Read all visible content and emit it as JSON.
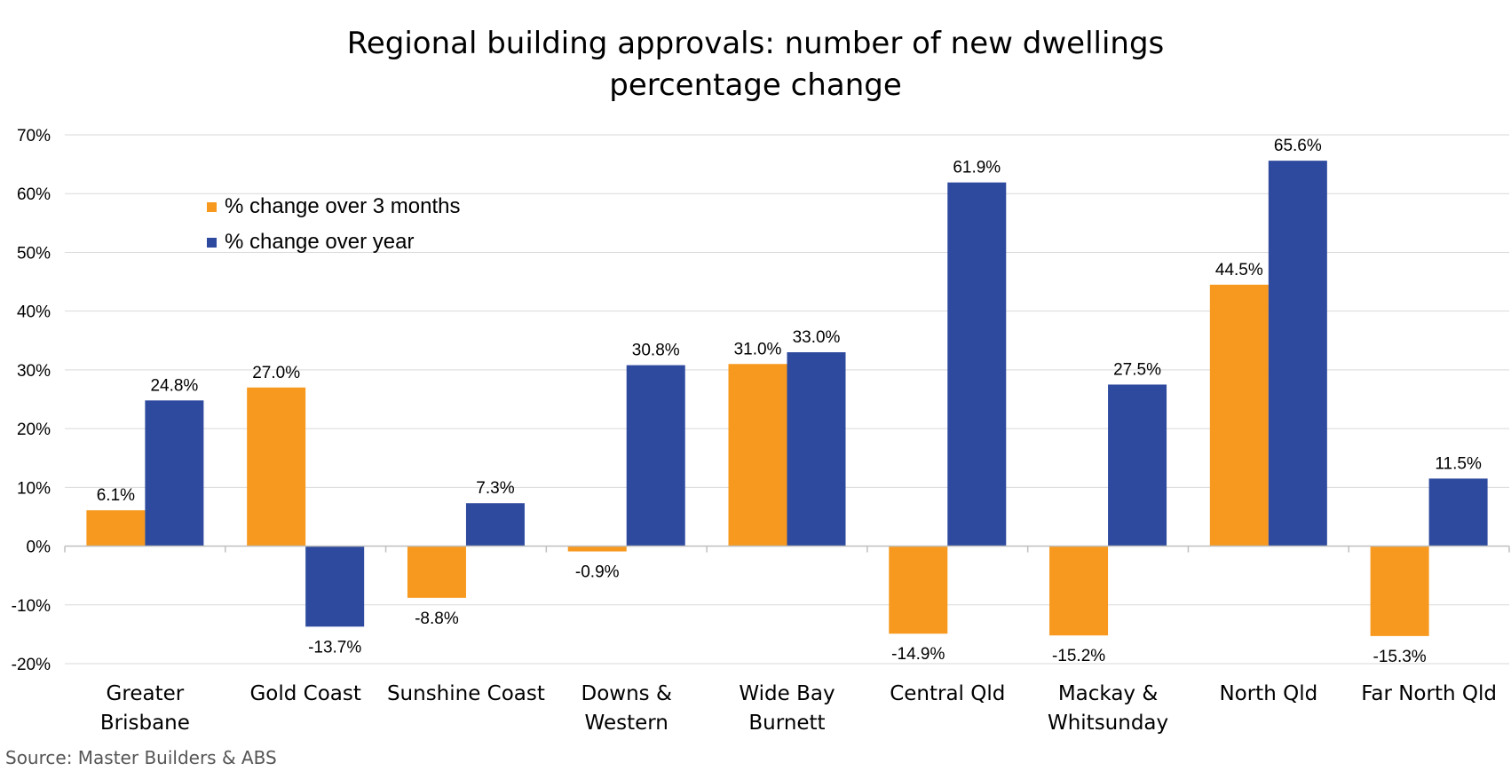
{
  "chart_data": {
    "type": "bar",
    "title": [
      "Regional building approvals: number of new dwellings",
      "percentage change"
    ],
    "categories": [
      [
        "Greater",
        "Brisbane"
      ],
      [
        "Gold Coast"
      ],
      [
        "Sunshine Coast"
      ],
      [
        "Downs &",
        "Western"
      ],
      [
        "Wide Bay",
        "Burnett"
      ],
      [
        "Central Qld"
      ],
      [
        "Mackay &",
        "Whitsunday"
      ],
      [
        "North Qld"
      ],
      [
        "Far North Qld"
      ]
    ],
    "series": [
      {
        "name": "% change over 3 months",
        "color": "#F7991F",
        "values": [
          6.1,
          27.0,
          -8.8,
          -0.9,
          31.0,
          -14.9,
          -15.2,
          44.5,
          -15.3
        ],
        "labels": [
          "6.1%",
          "27.0%",
          "-8.8%",
          "-0.9%",
          "31.0%",
          "-14.9%",
          "-15.2%",
          "44.5%",
          "-15.3%"
        ]
      },
      {
        "name": "% change over year",
        "color": "#2E4A9E",
        "values": [
          24.8,
          -13.7,
          7.3,
          30.8,
          33.0,
          61.9,
          27.5,
          65.6,
          11.5
        ],
        "labels": [
          "24.8%",
          "-13.7%",
          "7.3%",
          "30.8%",
          "33.0%",
          "61.9%",
          "27.5%",
          "65.6%",
          "11.5%"
        ]
      }
    ],
    "ylim": [
      -20,
      70
    ],
    "yticks": [
      -20,
      -10,
      0,
      10,
      20,
      30,
      40,
      50,
      60,
      70
    ],
    "ytick_labels": [
      "-20%",
      "-10%",
      "0%",
      "10%",
      "20%",
      "30%",
      "40%",
      "50%",
      "60%",
      "70%"
    ],
    "xlabel": "",
    "ylabel": "",
    "grid": true,
    "legend_position": "top-left",
    "source": "Source: Master Builders & ABS"
  }
}
